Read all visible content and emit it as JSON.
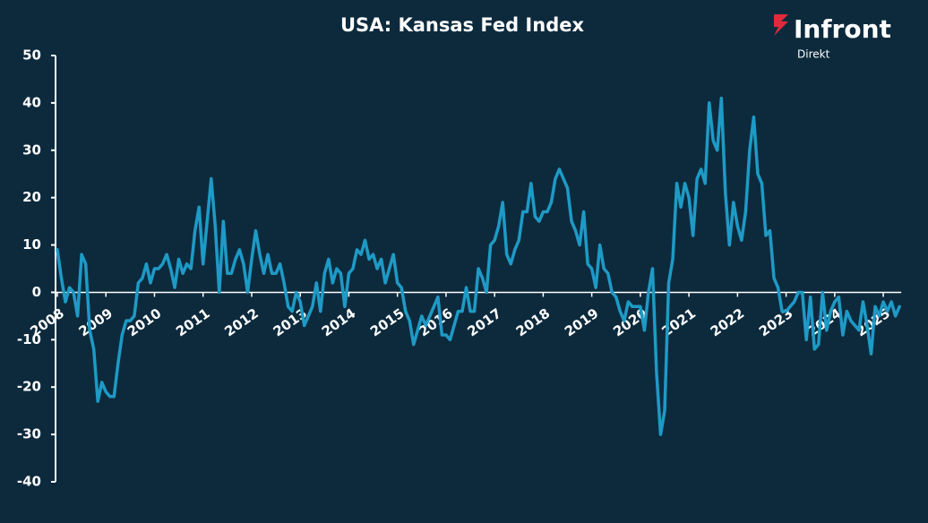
{
  "brand": {
    "name": "Infront",
    "sub": "Direkt"
  },
  "chart_data": {
    "type": "line",
    "title": "USA: Kansas Fed Index",
    "color": "#1e9ac6",
    "categories": [
      "2008",
      null,
      null,
      null,
      null,
      null,
      null,
      null,
      null,
      null,
      null,
      null,
      "2009",
      null,
      null,
      null,
      null,
      null,
      null,
      null,
      null,
      null,
      null,
      null,
      "2010",
      null,
      null,
      null,
      null,
      null,
      null,
      null,
      null,
      null,
      null,
      null,
      "2011",
      null,
      null,
      null,
      null,
      null,
      null,
      null,
      null,
      null,
      null,
      null,
      "2012",
      null,
      null,
      null,
      null,
      null,
      null,
      null,
      null,
      null,
      null,
      null,
      "2013",
      null,
      null,
      null,
      null,
      null,
      null,
      null,
      null,
      null,
      null,
      null,
      "2014",
      null,
      null,
      null,
      null,
      null,
      null,
      null,
      null,
      null,
      null,
      null,
      "2015",
      null,
      null,
      null,
      null,
      null,
      null,
      null,
      null,
      null,
      null,
      null,
      "2016",
      null,
      null,
      null,
      null,
      null,
      null,
      null,
      null,
      null,
      null,
      null,
      "2017",
      null,
      null,
      null,
      null,
      null,
      null,
      null,
      null,
      null,
      null,
      null,
      "2018",
      null,
      null,
      null,
      null,
      null,
      null,
      null,
      null,
      null,
      null,
      null,
      "2019",
      null,
      null,
      null,
      null,
      null,
      null,
      null,
      null,
      null,
      null,
      null,
      "2020",
      null,
      null,
      null,
      null,
      null,
      null,
      null,
      null,
      null,
      null,
      null,
      "2021",
      null,
      null,
      null,
      null,
      null,
      null,
      null,
      null,
      null,
      null,
      null,
      "2022",
      null,
      null,
      null,
      null,
      null,
      null,
      null,
      null,
      null,
      null,
      null,
      "2023",
      null,
      null,
      null,
      null,
      null,
      null,
      null,
      null,
      null,
      null,
      null,
      "2024",
      null,
      null,
      null,
      null,
      null,
      null,
      null,
      null,
      null,
      null,
      null,
      "2025",
      null,
      null,
      null,
      null
    ],
    "values": [
      9,
      3,
      -2,
      1,
      0,
      -5,
      8,
      6,
      -8,
      -12,
      -23,
      -19,
      -21,
      -22,
      -22,
      -15,
      -9,
      -6,
      -6,
      -5,
      2,
      3,
      6,
      2,
      5,
      5,
      6,
      8,
      5,
      1,
      7,
      4,
      6,
      5,
      13,
      18,
      6,
      15,
      24,
      14,
      0,
      15,
      4,
      4,
      7,
      9,
      6,
      0,
      7,
      13,
      8,
      4,
      8,
      4,
      4,
      6,
      2,
      -3,
      -4,
      0,
      -2,
      -7,
      -5,
      -3,
      2,
      -4,
      4,
      7,
      2,
      5,
      4,
      -3,
      4,
      5,
      9,
      8,
      11,
      7,
      8,
      5,
      7,
      2,
      5,
      8,
      2,
      1,
      -4,
      -6,
      -11,
      -8,
      -5,
      -7,
      -5,
      -3,
      -1,
      -9,
      -9,
      -10,
      -7,
      -4,
      -4,
      1,
      -4,
      -4,
      5,
      3,
      0,
      10,
      11,
      14,
      19,
      8,
      6,
      9,
      11,
      17,
      17,
      23,
      16,
      15,
      17,
      17,
      19,
      24,
      26,
      24,
      22,
      15,
      13,
      10,
      17,
      6,
      5,
      1,
      10,
      5,
      4,
      0,
      -1,
      -4,
      -6,
      -2,
      -3,
      -3,
      -3,
      -8,
      0,
      5,
      -17,
      -30,
      -25,
      2,
      7,
      23,
      18,
      23,
      20,
      12,
      24,
      26,
      23,
      40,
      32,
      30,
      41,
      21,
      10,
      19,
      14,
      11,
      17,
      30,
      37,
      25,
      23,
      12,
      13,
      3,
      1,
      -4,
      -4,
      -3,
      -2,
      0,
      0,
      -10,
      -1,
      -12,
      -11,
      0,
      -8,
      -4,
      -2,
      -1,
      -9,
      -4,
      -6,
      -7,
      -8,
      -2,
      -7,
      -13,
      -3,
      -5,
      -2,
      -4,
      -2,
      -5,
      -3
    ],
    "ylim": [
      -40,
      50
    ],
    "yticks": [
      -40,
      -30,
      -20,
      -10,
      0,
      10,
      20,
      30,
      40,
      50
    ]
  }
}
